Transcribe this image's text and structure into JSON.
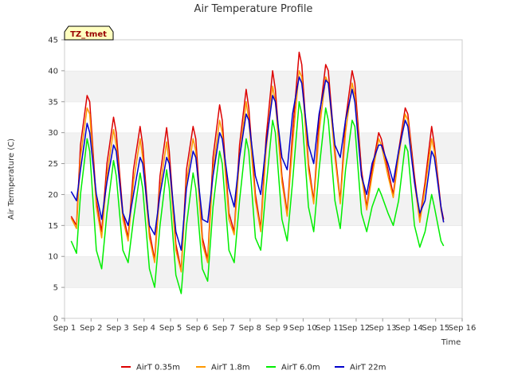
{
  "chart_data": {
    "type": "line",
    "title": "Air Temperature Profile",
    "xlabel": "Time",
    "ylabel": "Air Termperature (C)",
    "annotation": "TZ_tmet",
    "ylim": [
      0,
      45
    ],
    "xlim": [
      1,
      16
    ],
    "yticks": [
      0,
      5,
      10,
      15,
      20,
      25,
      30,
      35,
      40,
      45
    ],
    "xticks": [
      {
        "v": 1,
        "label": "Sep 1"
      },
      {
        "v": 2,
        "label": "Sep 2"
      },
      {
        "v": 3,
        "label": "Sep 3"
      },
      {
        "v": 4,
        "label": "Sep 4"
      },
      {
        "v": 5,
        "label": "Sep 5"
      },
      {
        "v": 6,
        "label": "Sep 6"
      },
      {
        "v": 7,
        "label": "Sep 7"
      },
      {
        "v": 8,
        "label": "Sep 8"
      },
      {
        "v": 9,
        "label": "Sep 9"
      },
      {
        "v": 10,
        "label": "Sep 10"
      },
      {
        "v": 11,
        "label": "Sep 11"
      },
      {
        "v": 12,
        "label": "Sep 12"
      },
      {
        "v": 13,
        "label": "Sep 13"
      },
      {
        "v": 14,
        "label": "Sep 14"
      },
      {
        "v": 15,
        "label": "Sep 15"
      },
      {
        "v": 16,
        "label": "Sep 16"
      }
    ],
    "grid": "horizontal bands",
    "legend_position": "bottom",
    "series": [
      {
        "name": "AirT 0.35m",
        "color": "#dd0000",
        "x": [
          1.25,
          1.45,
          1.6,
          1.85,
          1.95,
          2.2,
          2.4,
          2.6,
          2.85,
          2.95,
          3.2,
          3.4,
          3.6,
          3.85,
          3.95,
          4.2,
          4.4,
          4.6,
          4.85,
          4.95,
          5.2,
          5.4,
          5.6,
          5.85,
          5.95,
          6.2,
          6.4,
          6.6,
          6.85,
          6.95,
          7.2,
          7.4,
          7.6,
          7.85,
          7.95,
          8.2,
          8.4,
          8.6,
          8.85,
          8.95,
          9.2,
          9.4,
          9.6,
          9.85,
          9.95,
          10.2,
          10.4,
          10.6,
          10.85,
          10.95,
          11.2,
          11.4,
          11.6,
          11.85,
          11.95,
          12.2,
          12.4,
          12.6,
          12.85,
          12.95,
          13.2,
          13.4,
          13.6,
          13.85,
          13.95,
          14.2,
          14.4,
          14.6,
          14.85,
          14.95,
          15.2,
          15.3
        ],
        "y": [
          16.5,
          15,
          28,
          36,
          35,
          19,
          14,
          25,
          32.5,
          30,
          17,
          13,
          24,
          31,
          28,
          14,
          9.5,
          23,
          30.8,
          27,
          12,
          7.7,
          24,
          31,
          29,
          13,
          9.5,
          26,
          34.5,
          32,
          17,
          14,
          28,
          37,
          34,
          20,
          14.5,
          29,
          40,
          37,
          23,
          17,
          30,
          43,
          41,
          25,
          19,
          32,
          41,
          40,
          27,
          19,
          32,
          40,
          38,
          24,
          18,
          24,
          30,
          29,
          24,
          20,
          27,
          34,
          33,
          23,
          16,
          22,
          31,
          28,
          18,
          16
        ]
      },
      {
        "name": "AirT 1.8m",
        "color": "#ff9900",
        "x": [
          1.25,
          1.45,
          1.6,
          1.85,
          1.95,
          2.2,
          2.4,
          2.6,
          2.85,
          2.95,
          3.2,
          3.4,
          3.6,
          3.85,
          3.95,
          4.2,
          4.4,
          4.6,
          4.85,
          4.95,
          5.2,
          5.4,
          5.6,
          5.85,
          5.95,
          6.2,
          6.4,
          6.6,
          6.85,
          6.95,
          7.2,
          7.4,
          7.6,
          7.85,
          7.95,
          8.2,
          8.4,
          8.6,
          8.85,
          8.95,
          9.2,
          9.4,
          9.6,
          9.85,
          9.95,
          10.2,
          10.4,
          10.6,
          10.85,
          10.95,
          11.2,
          11.4,
          11.6,
          11.85,
          11.95,
          12.2,
          12.4,
          12.6,
          12.85,
          12.95,
          13.2,
          13.4,
          13.6,
          13.85,
          13.95,
          14.2,
          14.4,
          14.6,
          14.85,
          14.95,
          15.2,
          15.3
        ],
        "y": [
          16.2,
          14.5,
          26,
          34,
          33,
          18,
          13,
          23,
          30.5,
          28,
          16,
          12.5,
          22,
          29,
          26,
          13,
          9,
          21,
          28.5,
          25,
          11,
          7.5,
          22,
          29,
          27,
          12,
          9,
          24,
          32,
          30,
          16,
          13.5,
          26,
          35,
          32,
          19,
          14,
          27,
          37.5,
          35,
          22,
          16.5,
          28,
          40,
          39,
          24,
          18.5,
          30,
          39,
          38,
          26,
          18.5,
          30,
          38,
          36,
          23,
          17.5,
          23,
          29,
          28,
          23,
          19.5,
          26,
          33,
          32,
          22,
          15.5,
          21,
          29,
          27,
          17.5,
          15.5
        ]
      },
      {
        "name": "AirT 6.0m",
        "color": "#00ee00",
        "x": [
          1.25,
          1.45,
          1.6,
          1.85,
          1.95,
          2.2,
          2.4,
          2.6,
          2.85,
          2.95,
          3.2,
          3.4,
          3.6,
          3.85,
          3.95,
          4.2,
          4.4,
          4.6,
          4.85,
          4.95,
          5.2,
          5.4,
          5.6,
          5.85,
          5.95,
          6.2,
          6.4,
          6.6,
          6.85,
          6.95,
          7.2,
          7.4,
          7.6,
          7.85,
          7.95,
          8.2,
          8.4,
          8.6,
          8.85,
          8.95,
          9.2,
          9.4,
          9.6,
          9.85,
          9.95,
          10.2,
          10.4,
          10.6,
          10.85,
          10.95,
          11.2,
          11.4,
          11.6,
          11.85,
          11.95,
          12.2,
          12.4,
          12.6,
          12.85,
          12.95,
          13.2,
          13.4,
          13.6,
          13.85,
          13.95,
          14.2,
          14.4,
          14.6,
          14.85,
          14.95,
          15.2,
          15.3
        ],
        "y": [
          12.5,
          10.5,
          20,
          29,
          27,
          11,
          8,
          17,
          25.5,
          23,
          11,
          9,
          16,
          23.5,
          21,
          8,
          5,
          15,
          24,
          21,
          7,
          4,
          15,
          23.5,
          21,
          8,
          6,
          18,
          27,
          25,
          11,
          9,
          19,
          29,
          27,
          13,
          11,
          21,
          32,
          30,
          16,
          12.5,
          22,
          35,
          33,
          18,
          14,
          24,
          34,
          32,
          19,
          14.5,
          24,
          32,
          31,
          17,
          14,
          18,
          21,
          20,
          17,
          15,
          19,
          28,
          27,
          15,
          11.5,
          14,
          20,
          18,
          12.5,
          11.7
        ]
      },
      {
        "name": "AirT 22m",
        "color": "#0000cc",
        "x": [
          1.25,
          1.45,
          1.6,
          1.85,
          1.95,
          2.2,
          2.4,
          2.6,
          2.85,
          2.95,
          3.2,
          3.4,
          3.6,
          3.85,
          3.95,
          4.2,
          4.4,
          4.6,
          4.85,
          4.95,
          5.2,
          5.4,
          5.6,
          5.85,
          5.95,
          6.2,
          6.4,
          6.6,
          6.85,
          6.95,
          7.2,
          7.4,
          7.6,
          7.85,
          7.95,
          8.2,
          8.4,
          8.6,
          8.85,
          8.95,
          9.2,
          9.4,
          9.6,
          9.85,
          9.95,
          10.2,
          10.4,
          10.6,
          10.85,
          10.95,
          11.2,
          11.4,
          11.6,
          11.85,
          11.95,
          12.2,
          12.4,
          12.6,
          12.85,
          12.95,
          13.2,
          13.4,
          13.6,
          13.85,
          13.95,
          14.2,
          14.4,
          14.6,
          14.85,
          14.95,
          15.2,
          15.3
        ],
        "y": [
          20.5,
          19,
          24,
          31.5,
          30,
          20,
          16,
          22,
          28,
          27,
          17,
          15,
          20,
          26,
          25,
          15,
          13.5,
          20,
          26,
          25,
          14,
          11,
          21,
          27,
          26,
          16,
          15.5,
          23,
          30,
          29,
          21,
          18,
          26,
          33,
          32,
          23,
          20,
          28,
          36,
          35,
          26,
          24,
          33,
          39,
          38,
          28,
          25,
          33,
          38.5,
          38,
          28,
          26,
          32,
          37,
          35,
          23,
          20,
          25,
          28,
          28,
          25,
          22,
          27,
          32,
          31,
          22,
          17,
          19,
          27,
          26,
          18,
          15.5
        ]
      }
    ]
  }
}
